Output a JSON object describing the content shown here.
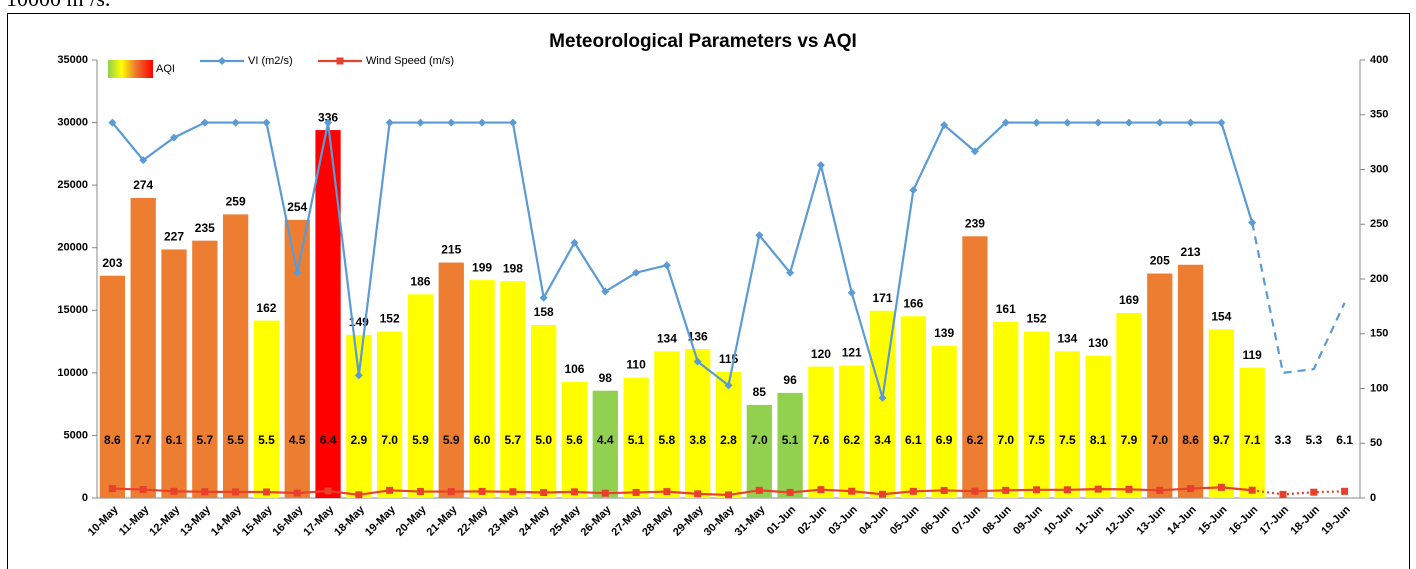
{
  "page_text": "10000 m²/s.",
  "chart_data": {
    "type": "combo",
    "title": "Meteorological Parameters vs AQI",
    "categories": [
      "10-May",
      "11-May",
      "12-May",
      "13-May",
      "14-May",
      "15-May",
      "16-May",
      "17-May",
      "18-May",
      "19-May",
      "20-May",
      "21-May",
      "22-May",
      "23-May",
      "24-May",
      "25-May",
      "26-May",
      "27-May",
      "28-May",
      "29-May",
      "30-May",
      "31-May",
      "01-Jun",
      "02-Jun",
      "03-Jun",
      "04-Jun",
      "05-Jun",
      "06-Jun",
      "07-Jun",
      "08-Jun",
      "09-Jun",
      "10-Jun",
      "11-Jun",
      "12-Jun",
      "13-Jun",
      "14-Jun",
      "15-Jun",
      "16-Jun",
      "17-Jun",
      "18-Jun",
      "19-Jun"
    ],
    "ylim": [
      0,
      35000
    ],
    "yticks": [
      0,
      5000,
      10000,
      15000,
      20000,
      25000,
      30000,
      35000
    ],
    "y2lim": [
      0,
      400
    ],
    "y2ticks": [
      0,
      50,
      100,
      150,
      200,
      250,
      300,
      350,
      400
    ],
    "series": [
      {
        "name": "AQI",
        "type": "bar",
        "axis": "y2",
        "values": [
          203,
          274,
          227,
          235,
          259,
          162,
          254,
          336,
          149,
          152,
          186,
          215,
          199,
          198,
          158,
          106,
          98,
          110,
          134,
          136,
          115,
          85,
          96,
          120,
          121,
          171,
          166,
          139,
          239,
          161,
          152,
          134,
          130,
          169,
          205,
          213,
          154,
          119,
          null,
          null,
          null
        ],
        "colors": [
          "#ed7d31",
          "#ed7d31",
          "#ed7d31",
          "#ed7d31",
          "#ed7d31",
          "#ffff00",
          "#ed7d31",
          "#ff0000",
          "#ffff00",
          "#ffff00",
          "#ffff00",
          "#ed7d31",
          "#ffff00",
          "#ffff00",
          "#ffff00",
          "#ffff00",
          "#92d050",
          "#ffff00",
          "#ffff00",
          "#ffff00",
          "#ffff00",
          "#92d050",
          "#92d050",
          "#ffff00",
          "#ffff00",
          "#ffff00",
          "#ffff00",
          "#ffff00",
          "#ed7d31",
          "#ffff00",
          "#ffff00",
          "#ffff00",
          "#ffff00",
          "#ffff00",
          "#ed7d31",
          "#ed7d31",
          "#ffff00",
          "#ffff00",
          null,
          null,
          null
        ]
      },
      {
        "name": "VI (m2/s)",
        "type": "line",
        "axis": "y",
        "color": "#5b9bd5",
        "dashed_after": "16-Jun",
        "values": [
          30000,
          27000,
          28800,
          30000,
          30000,
          30000,
          18000,
          30000,
          9800,
          30000,
          30000,
          30000,
          30000,
          30000,
          16000,
          20400,
          16500,
          18000,
          18600,
          10900,
          9000,
          21000,
          18000,
          26600,
          16400,
          8000,
          24600,
          29800,
          27700,
          30000,
          30000,
          30000,
          30000,
          30000,
          30000,
          30000,
          30000,
          22000,
          10000,
          10300,
          15600
        ]
      },
      {
        "name": "Wind Speed (m/s)",
        "type": "line",
        "axis": "y2",
        "color": "#e8402a",
        "dashed_after": "16-Jun",
        "values": [
          8.6,
          7.7,
          6.1,
          5.7,
          5.5,
          5.5,
          4.5,
          6.4,
          2.9,
          7,
          5.9,
          5.9,
          6,
          5.7,
          5,
          5.6,
          4.4,
          5.1,
          5.8,
          3.8,
          2.8,
          7,
          5.1,
          7.6,
          6.2,
          3.4,
          6.1,
          6.9,
          6.2,
          7,
          7.5,
          7.5,
          8.1,
          7.9,
          7,
          8.6,
          9.7,
          7.1,
          3.3,
          5.3,
          6.1
        ],
        "value_labels": [
          "8.6",
          "7.7",
          "6.1",
          "5.7",
          "5.5",
          "5.5",
          "4.5",
          "6.4",
          "2.9",
          "7.0",
          "5.9",
          "5.9",
          "6.0",
          "5.7",
          "5.0",
          "5.6",
          "4.4",
          "5.1",
          "5.8",
          "3.8",
          "2.8",
          "7.0",
          "5.1",
          "7.6",
          "6.2",
          "3.4",
          "6.1",
          "6.9",
          "6.2",
          "7.0",
          "7.5",
          "7.5",
          "8.1",
          "7.9",
          "7.0",
          "8.6",
          "9.7",
          "7.1",
          "3.3",
          "5.3",
          "6.1"
        ]
      }
    ]
  }
}
